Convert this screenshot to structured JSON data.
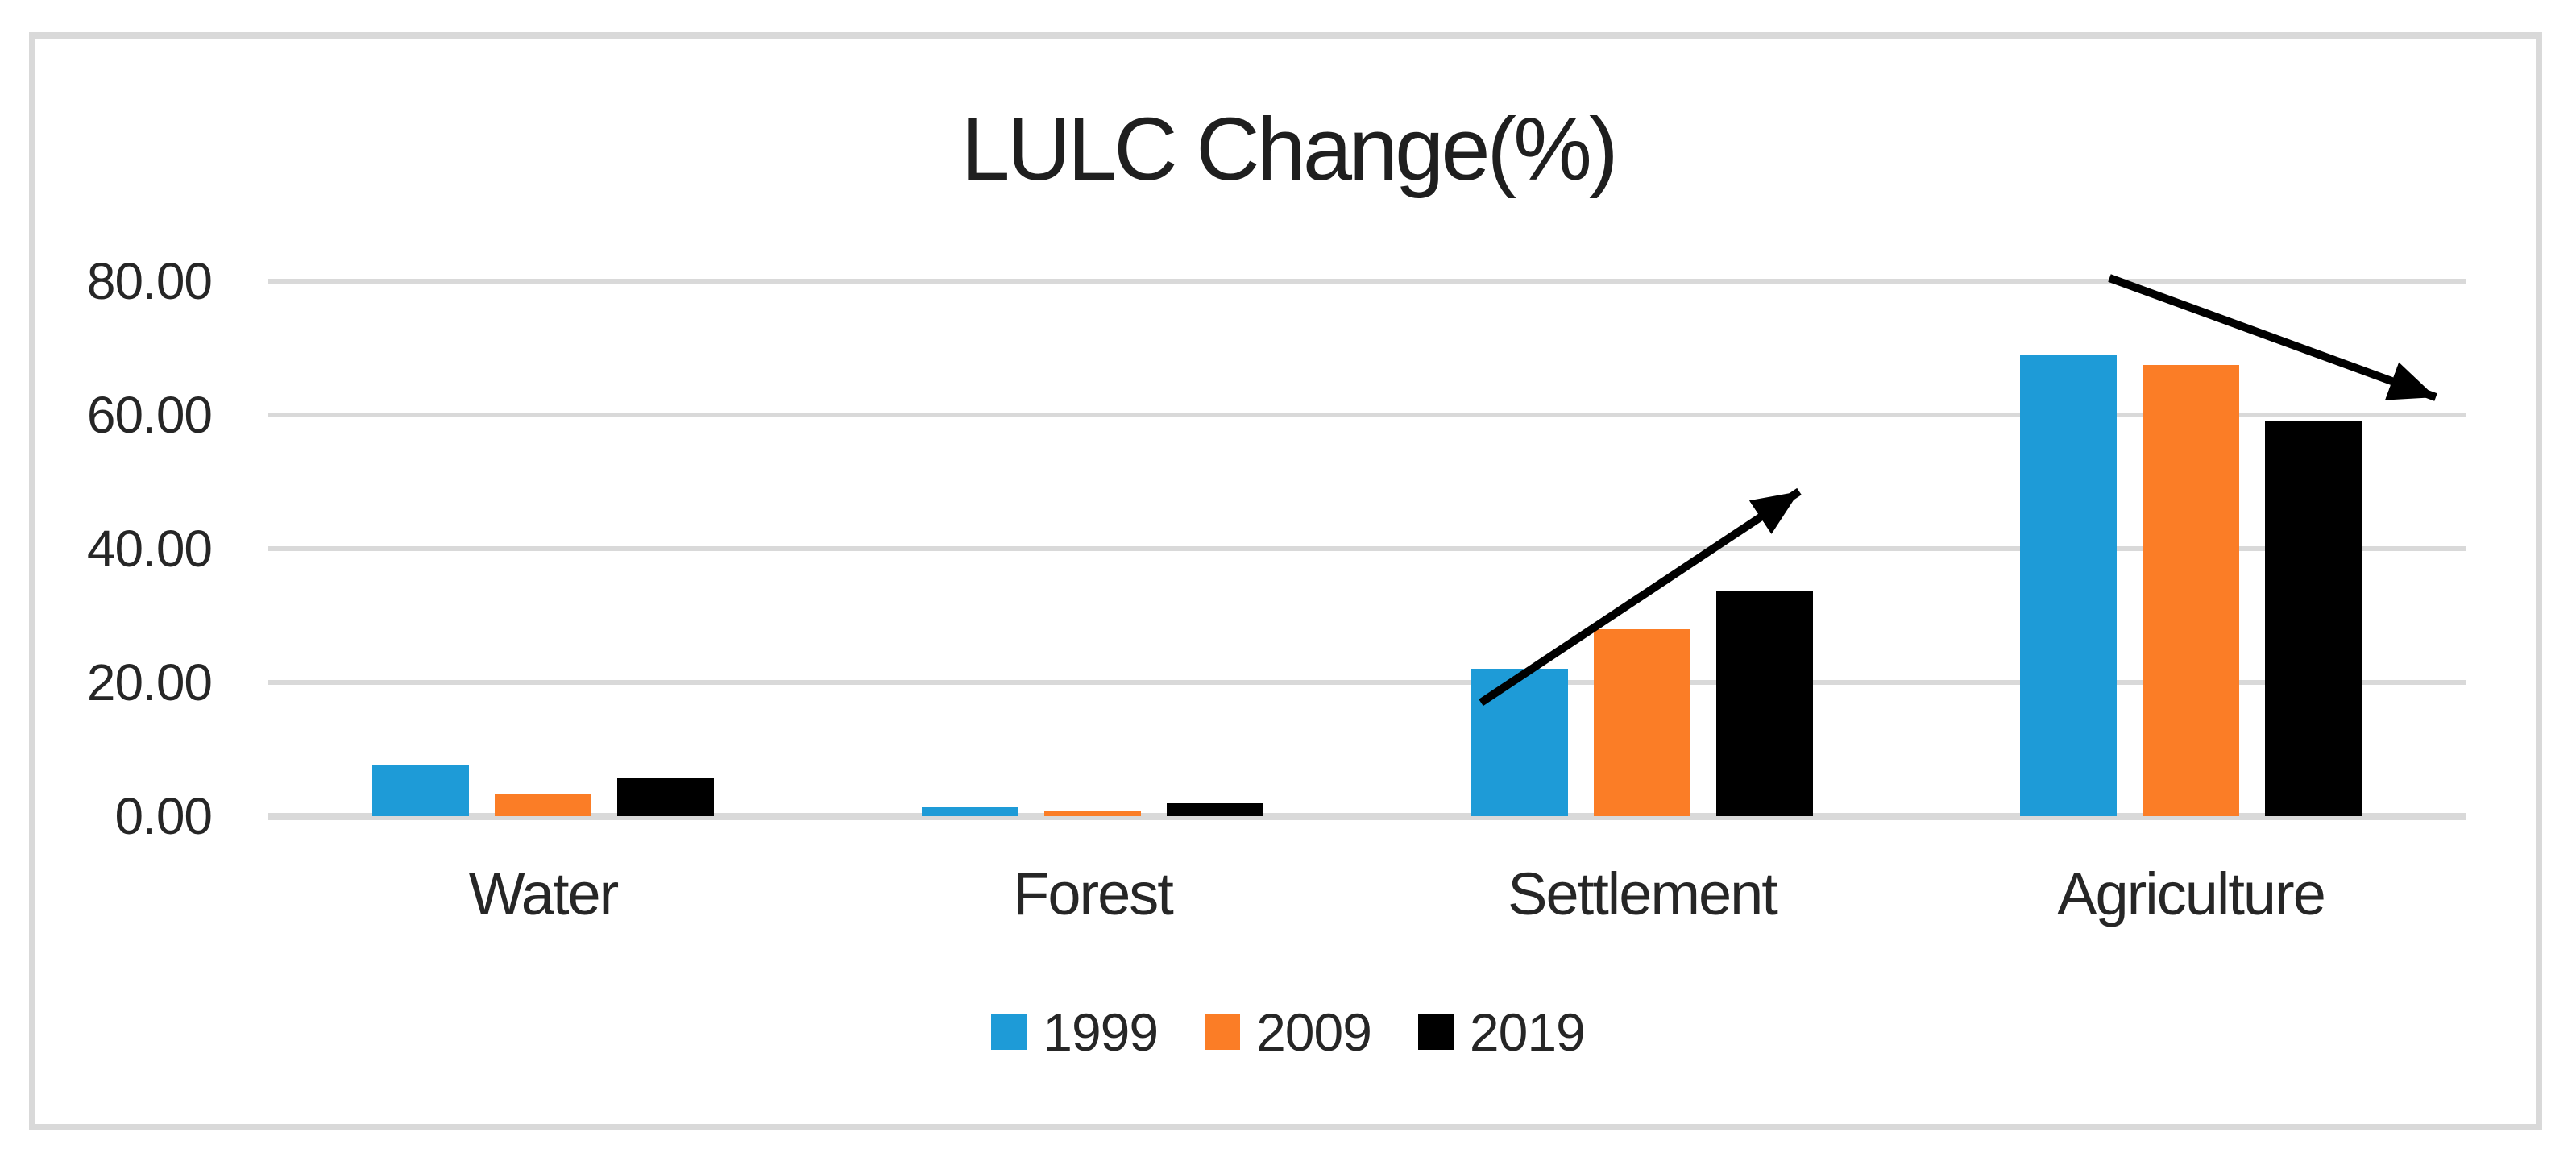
{
  "chart_data": {
    "type": "bar",
    "title": "LULC Change(%)",
    "categories": [
      "Water",
      "Forest",
      "Settlement",
      "Agriculture"
    ],
    "series": [
      {
        "name": "1999",
        "color": "#1E9BD7",
        "values": [
          7.7,
          1.3,
          22.0,
          69.0
        ]
      },
      {
        "name": "2009",
        "color": "#FB7D26",
        "values": [
          3.4,
          0.9,
          28.0,
          67.5
        ]
      },
      {
        "name": "2019",
        "color": "#000000",
        "values": [
          5.7,
          1.9,
          33.6,
          59.2
        ]
      }
    ],
    "xlabel": "",
    "ylabel": "",
    "ylim": [
      0,
      80
    ],
    "yticks": [
      0,
      20,
      40,
      60,
      80
    ],
    "ytick_labels": [
      "0.00",
      "20.00",
      "40.00",
      "60.00",
      "80.00"
    ],
    "grid": true,
    "legend_position": "bottom",
    "annotations": [
      {
        "type": "arrow",
        "name": "settlement-increase-arrow",
        "direction": "up",
        "from": {
          "x": 2.208,
          "value": 17.0
        },
        "to": {
          "x": 2.787,
          "value": 48.6
        }
      },
      {
        "type": "arrow",
        "name": "agriculture-decrease-arrow",
        "direction": "down",
        "from": {
          "x": 3.351,
          "value": 80.5
        },
        "to": {
          "x": 3.946,
          "value": 62.7
        }
      }
    ]
  },
  "colors": {
    "grid": "#D9D9D9",
    "frame": "#D9D9D9",
    "axis_text": "#262626",
    "title_text": "#1f1f1f",
    "arrow": "#000000",
    "background": "#ffffff"
  }
}
